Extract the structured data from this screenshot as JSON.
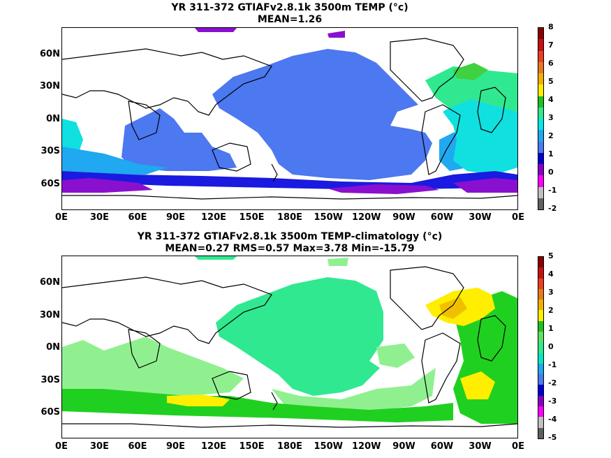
{
  "panels": [
    {
      "title_line1": "YR 311-372 GTIAFv2.8.1k 3500m TEMP (°c)",
      "title_line2": "MEAN=1.26",
      "x_ticks": [
        "0E",
        "30E",
        "60E",
        "90E",
        "120E",
        "150E",
        "180E",
        "150W",
        "120W",
        "90W",
        "60W",
        "30W",
        "0E"
      ],
      "y_ticks": [
        "60N",
        "30N",
        "0N",
        "30S",
        "60S"
      ],
      "colorbar": {
        "labels": [
          "8",
          "7",
          "6",
          "5",
          "4",
          "3",
          "2",
          "1",
          "0",
          "-1",
          "-2"
        ],
        "colors": [
          "#8b0000",
          "#c81010",
          "#e84020",
          "#e87820",
          "#f0b000",
          "#ffee00",
          "#20c020",
          "#30e890",
          "#00e8e8",
          "#20a8f0",
          "#4c78f0",
          "#0000d0",
          "#8800c8",
          "#ff00ff",
          "#c0c0c0",
          "#606060"
        ]
      },
      "fill_colors": {
        "ocean": "#4c78f0",
        "deep": "#1a1ae0",
        "violet": "#8a10d0",
        "cyan": "#10e0e0",
        "lightblue": "#20a8f0",
        "green": "#30e890",
        "lime": "#40d040"
      }
    },
    {
      "title_line1": "YR 311-372 GTIAFv2.8.1k 3500m TEMP-climatology (°c)",
      "title_line2": "MEAN=0.27   RMS=0.57   Max=3.78   Min=-15.79",
      "x_ticks": [
        "0E",
        "30E",
        "60E",
        "90E",
        "120E",
        "150E",
        "180E",
        "150W",
        "120W",
        "90W",
        "60W",
        "30W",
        "0E"
      ],
      "y_ticks": [
        "60N",
        "30N",
        "0N",
        "30S",
        "60S"
      ],
      "colorbar": {
        "labels": [
          "5",
          "4",
          "3",
          "2",
          "1",
          "0",
          "-1",
          "-2",
          "-3",
          "-4",
          "-5"
        ],
        "colors": [
          "#8b0000",
          "#c81010",
          "#e84020",
          "#e87820",
          "#f0b000",
          "#ffee00",
          "#20c020",
          "#60e060",
          "#30e890",
          "#00e8c0",
          "#20a8f0",
          "#4c78f0",
          "#0000d0",
          "#8800c8",
          "#ff00ff",
          "#c0c0c0",
          "#606060"
        ]
      },
      "fill_colors": {
        "ocean": "#30e890",
        "lightgreen": "#90f090",
        "green": "#20d020",
        "yellow": "#ffee00",
        "orange": "#f0c000"
      }
    }
  ]
}
